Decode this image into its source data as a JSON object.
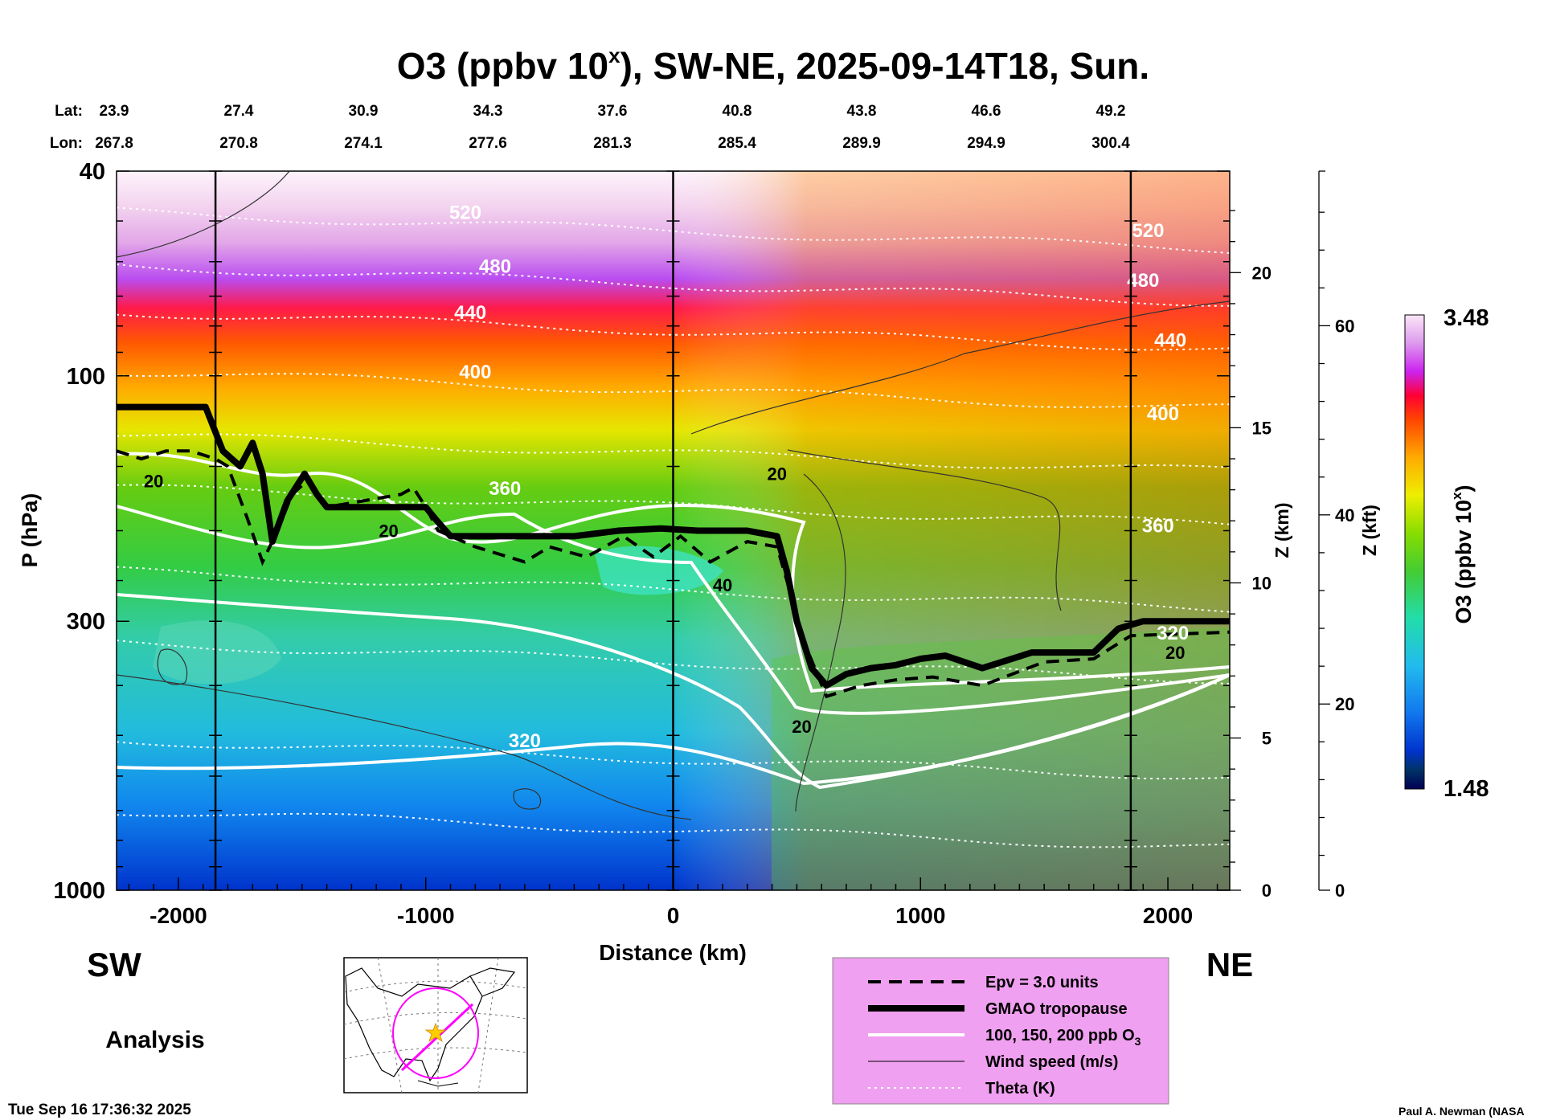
{
  "chart_data": {
    "type": "heatmap",
    "title": "O3 (ppbv 10",
    "title_sup": "x",
    "title_rest": "), SW-NE, 2025-09-14T18, Sun.",
    "xlabel": "Distance (km)",
    "ylabel": "P (hPa)",
    "ylabel_right_inner": "Z (km)",
    "ylabel_right_outer": "Z (kft)",
    "colorbar_label": "O3 (ppbv 10",
    "colorbar_label_sup": "x",
    "colorbar_label_rest": ")",
    "colorbar_max": "3.48",
    "colorbar_min": "1.48",
    "colorbar_range": [
      1.48,
      3.48
    ],
    "xlim": [
      -2250,
      2250
    ],
    "ylim": [
      1000,
      40
    ],
    "y_scale": "log",
    "x_ticks": [
      -2000,
      -1000,
      0,
      1000,
      2000
    ],
    "x_tick_labels": [
      "-2000",
      "-1000",
      "0",
      "1000",
      "2000"
    ],
    "y_ticks": [
      40,
      100,
      300,
      1000
    ],
    "y_tick_labels": [
      "40",
      "100",
      "300",
      "1000"
    ],
    "z_km_ticks": [
      0,
      5,
      10,
      15,
      20
    ],
    "z_km_tick_labels": [
      "0",
      "5",
      "10",
      "15",
      "20"
    ],
    "z_kft_ticks": [
      0,
      20,
      40,
      60
    ],
    "z_kft_tick_labels": [
      "0",
      "20",
      "40",
      "60"
    ],
    "lat_label": "Lat:",
    "lon_label": "Lon:",
    "latitudes": [
      "23.9",
      "27.4",
      "30.9",
      "34.3",
      "37.6",
      "40.8",
      "43.8",
      "46.6",
      "49.2"
    ],
    "longitudes": [
      "267.8",
      "270.8",
      "274.1",
      "277.6",
      "281.3",
      "285.4",
      "289.9",
      "294.9",
      "300.4"
    ],
    "vertical_lines_km": [
      -1850,
      0,
      1850
    ],
    "tropopause_hpa": [
      [
        -2250,
        115
      ],
      [
        -1890,
        115
      ],
      [
        -1820,
        140
      ],
      [
        -1750,
        150
      ],
      [
        -1700,
        135
      ],
      [
        -1660,
        155
      ],
      [
        -1620,
        210
      ],
      [
        -1560,
        175
      ],
      [
        -1490,
        155
      ],
      [
        -1440,
        170
      ],
      [
        -1400,
        180
      ],
      [
        -1000,
        180
      ],
      [
        -960,
        190
      ],
      [
        -900,
        205
      ],
      [
        -400,
        205
      ],
      [
        -220,
        200
      ],
      [
        -50,
        198
      ],
      [
        100,
        200
      ],
      [
        300,
        200
      ],
      [
        420,
        205
      ],
      [
        460,
        240
      ],
      [
        500,
        300
      ],
      [
        560,
        370
      ],
      [
        620,
        400
      ],
      [
        700,
        380
      ],
      [
        800,
        370
      ],
      [
        900,
        365
      ],
      [
        1000,
        355
      ],
      [
        1100,
        350
      ],
      [
        1250,
        370
      ],
      [
        1450,
        345
      ],
      [
        1700,
        345
      ],
      [
        1800,
        310
      ],
      [
        1900,
        300
      ],
      [
        2250,
        300
      ]
    ],
    "epv_hpa": [
      [
        -2250,
        140
      ],
      [
        -2150,
        145
      ],
      [
        -2050,
        140
      ],
      [
        -1950,
        140
      ],
      [
        -1850,
        145
      ],
      [
        -1800,
        150
      ],
      [
        -1720,
        190
      ],
      [
        -1660,
        230
      ],
      [
        -1600,
        200
      ],
      [
        -1540,
        170
      ],
      [
        -1480,
        160
      ],
      [
        -1400,
        180
      ],
      [
        -1100,
        170
      ],
      [
        -1050,
        165
      ],
      [
        -1000,
        180
      ],
      [
        -950,
        200
      ],
      [
        -800,
        215
      ],
      [
        -600,
        230
      ],
      [
        -500,
        215
      ],
      [
        -350,
        225
      ],
      [
        -200,
        205
      ],
      [
        -80,
        225
      ],
      [
        30,
        205
      ],
      [
        150,
        230
      ],
      [
        300,
        210
      ],
      [
        420,
        215
      ],
      [
        470,
        260
      ],
      [
        530,
        330
      ],
      [
        620,
        420
      ],
      [
        760,
        400
      ],
      [
        900,
        390
      ],
      [
        1050,
        385
      ],
      [
        1250,
        400
      ],
      [
        1500,
        360
      ],
      [
        1700,
        355
      ],
      [
        1850,
        320
      ],
      [
        2250,
        315
      ]
    ],
    "theta_labels": [
      {
        "text": "520",
        "x": -840,
        "p": 48
      },
      {
        "text": "480",
        "x": -720,
        "p": 61
      },
      {
        "text": "440",
        "x": -820,
        "p": 75
      },
      {
        "text": "400",
        "x": -800,
        "p": 98
      },
      {
        "text": "360",
        "x": -680,
        "p": 165
      },
      {
        "text": "320",
        "x": -600,
        "p": 510
      },
      {
        "text": "520",
        "x": 1920,
        "p": 52
      },
      {
        "text": "480",
        "x": 1900,
        "p": 65
      },
      {
        "text": "440",
        "x": 2010,
        "p": 85
      },
      {
        "text": "400",
        "x": 1980,
        "p": 118
      },
      {
        "text": "360",
        "x": 1960,
        "p": 195
      },
      {
        "text": "320",
        "x": 2020,
        "p": 315
      }
    ],
    "wind_labels": [
      {
        "text": "20",
        "x": -2100,
        "p": 160
      },
      {
        "text": "20",
        "x": -1150,
        "p": 200
      },
      {
        "text": "40",
        "x": 200,
        "p": 255
      },
      {
        "text": "20",
        "x": 420,
        "p": 155
      },
      {
        "text": "20",
        "x": 520,
        "p": 480
      },
      {
        "text": "20",
        "x": 2030,
        "p": 345
      }
    ]
  },
  "panel_left": "SW",
  "panel_right": "NE",
  "analysis_label": "Analysis",
  "timestamp": "Tue Sep 16 17:36:32 2025",
  "credit": "Paul A. Newman (NASA",
  "legend": {
    "background": "#f0a0f0",
    "items": [
      {
        "label": "Epv = 3.0 units",
        "style": "dashed"
      },
      {
        "label": "GMAO tropopause",
        "style": "thick"
      },
      {
        "label": "100, 150, 200 ppb O",
        "sub": "3",
        "style": "white"
      },
      {
        "label": "Wind speed (m/s)",
        "style": "thin"
      },
      {
        "label": "Theta (K)",
        "style": "dotted"
      }
    ]
  },
  "colors": {
    "tropopause": "#000000",
    "ozone_contour": "#ffffff",
    "map_path": "#ff00ff",
    "map_marker": "#ffcc00"
  }
}
